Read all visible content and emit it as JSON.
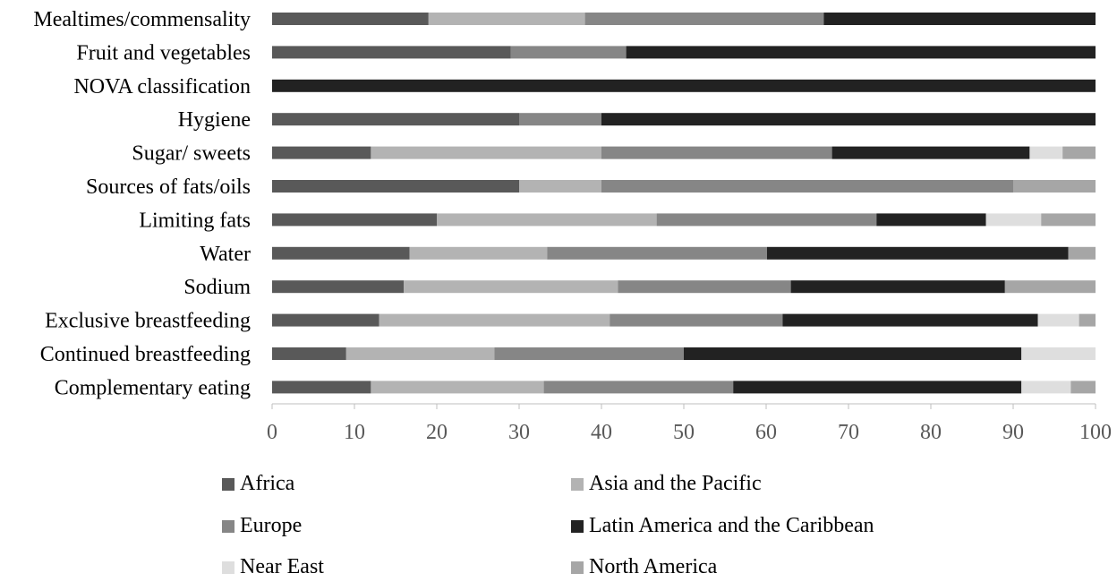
{
  "chart_data": {
    "type": "bar",
    "orientation": "horizontal",
    "stacked": true,
    "categories": [
      "Mealtimes/commensality",
      "Fruit and vegetables",
      "NOVA classification",
      "Hygiene",
      "Sugar/ sweets",
      "Sources of fats/oils",
      "Limiting fats",
      "Water",
      "Sodium",
      "Exclusive breastfeeding",
      "Continued breastfeeding",
      "Complementary eating"
    ],
    "series": [
      {
        "name": "Africa",
        "color": "#595959",
        "values": [
          19,
          29,
          0,
          30,
          12,
          30,
          20,
          16.7,
          16,
          13,
          9,
          12
        ]
      },
      {
        "name": "Asia and the Pacific",
        "color": "#b3b3b3",
        "values": [
          19,
          0,
          0,
          0,
          28,
          10,
          26.7,
          16.7,
          26,
          28,
          18,
          21
        ]
      },
      {
        "name": "Europe",
        "color": "#868686",
        "values": [
          29,
          14,
          0,
          10,
          28,
          50,
          26.7,
          26.7,
          21,
          21,
          23,
          23
        ]
      },
      {
        "name": "Latin America and the Caribbean",
        "color": "#222222",
        "values": [
          33,
          57,
          100,
          60,
          24,
          0,
          13.3,
          36.6,
          26,
          31,
          41,
          35
        ]
      },
      {
        "name": "Near East",
        "color": "#dedede",
        "values": [
          0,
          0,
          0,
          0,
          4,
          0,
          6.7,
          0,
          0,
          5,
          9,
          6
        ]
      },
      {
        "name": "North America",
        "color": "#a6a6a6",
        "values": [
          0,
          0,
          0,
          0,
          4,
          10,
          6.6,
          3.3,
          11,
          2,
          0,
          3
        ]
      }
    ],
    "xlim": [
      0,
      100
    ],
    "xticks": [
      "0",
      "10",
      "20",
      "30",
      "40",
      "50",
      "60",
      "70",
      "80",
      "90",
      "100"
    ],
    "legend_position": "bottom",
    "grid": false
  }
}
